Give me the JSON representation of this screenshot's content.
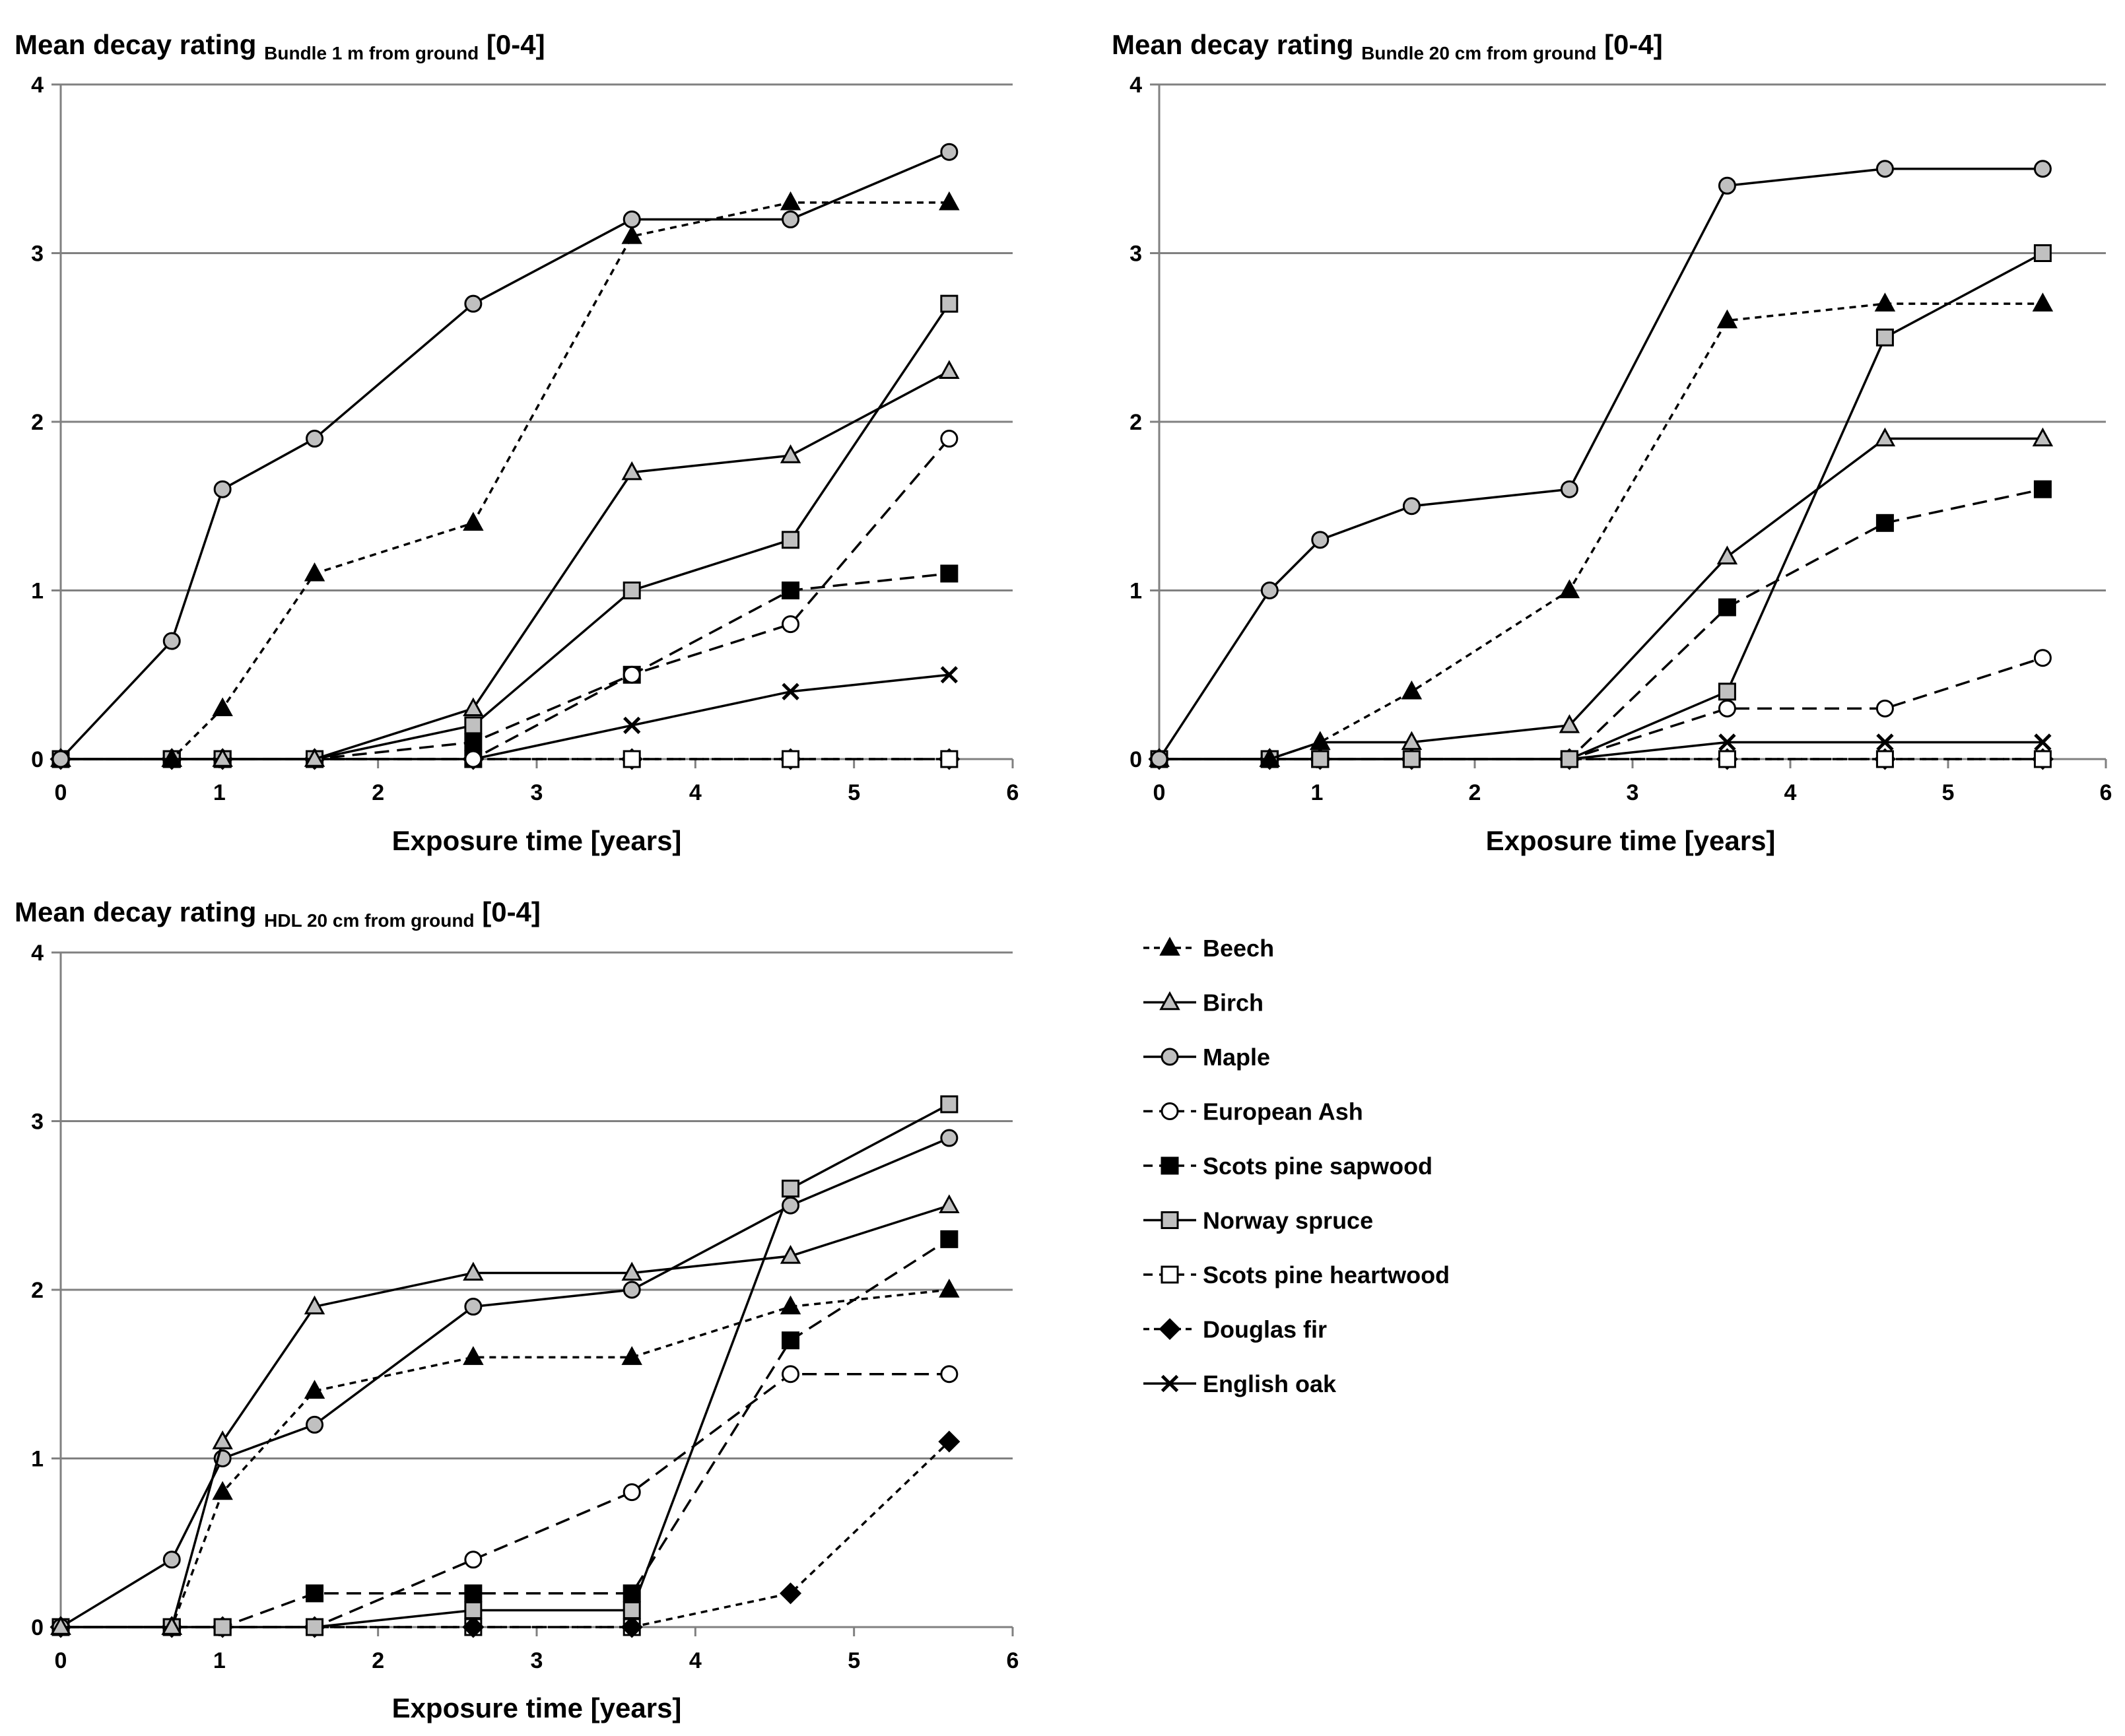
{
  "figure": {
    "legend": [
      {
        "key": "beech",
        "label": "Beech"
      },
      {
        "key": "birch",
        "label": "Birch"
      },
      {
        "key": "maple",
        "label": "Maple"
      },
      {
        "key": "ash",
        "label": "European Ash"
      },
      {
        "key": "pine_sap",
        "label": "Scots pine sapwood"
      },
      {
        "key": "spruce",
        "label": "Norway spruce"
      },
      {
        "key": "pine_heart",
        "label": "Scots pine heartwood"
      },
      {
        "key": "douglas",
        "label": "Douglas fir"
      },
      {
        "key": "oak",
        "label": "English oak"
      }
    ],
    "styles": {
      "beech": {
        "marker": "triangle",
        "fill": "#000000",
        "dash": "short",
        "color": "#000000"
      },
      "birch": {
        "marker": "triangle",
        "fill": "#c0c0c0",
        "dash": "solid",
        "color": "#000000"
      },
      "maple": {
        "marker": "circle",
        "fill": "#c0c0c0",
        "dash": "solid",
        "color": "#000000"
      },
      "ash": {
        "marker": "circle",
        "fill": "#ffffff",
        "dash": "long",
        "color": "#000000"
      },
      "pine_sap": {
        "marker": "square",
        "fill": "#000000",
        "dash": "long",
        "color": "#000000"
      },
      "spruce": {
        "marker": "square",
        "fill": "#c0c0c0",
        "dash": "solid",
        "color": "#000000"
      },
      "pine_heart": {
        "marker": "square",
        "fill": "#ffffff",
        "dash": "long",
        "color": "#000000"
      },
      "douglas": {
        "marker": "diamond",
        "fill": "#000000",
        "dash": "short",
        "color": "#000000"
      },
      "oak": {
        "marker": "x",
        "fill": "none",
        "dash": "solid",
        "color": "#000000"
      }
    },
    "gridline_color": "#808080"
  },
  "chart_data": [
    {
      "type": "line",
      "title_main": "Mean decay rating",
      "title_sub": "Bundle 1 m from ground",
      "title_end": "[0-4]",
      "xlabel": "Exposure time [years]",
      "ylabel": "",
      "xlim": [
        0,
        6
      ],
      "ylim": [
        0,
        4
      ],
      "xticks": [
        0,
        1,
        2,
        3,
        4,
        5,
        6
      ],
      "yticks": [
        0,
        1,
        2,
        3,
        4
      ],
      "series": [
        {
          "key": "douglas",
          "name": "Douglas fir",
          "x": [
            0,
            0.7,
            1.02,
            1.6,
            2.6,
            3.6,
            4.6,
            5.6
          ],
          "values": [
            0,
            0,
            0,
            0,
            0,
            0,
            0,
            0
          ]
        },
        {
          "key": "pine_heart",
          "name": "Scots pine heartwood",
          "x": [
            0,
            0.7,
            1.02,
            1.6,
            2.6,
            3.6,
            4.6,
            5.6
          ],
          "values": [
            0,
            0,
            0,
            0,
            0,
            0,
            0,
            0
          ]
        },
        {
          "key": "oak",
          "name": "English oak",
          "x": [
            0,
            0.7,
            1.02,
            1.6,
            2.6,
            3.6,
            4.6,
            5.6
          ],
          "values": [
            0,
            0,
            0,
            0,
            0,
            0.2,
            0.4,
            0.5
          ]
        },
        {
          "key": "pine_sap",
          "name": "Scots pine sapwood",
          "x": [
            0,
            0.7,
            1.02,
            1.6,
            2.6,
            3.6,
            4.6,
            5.6
          ],
          "values": [
            0,
            0,
            0,
            0,
            0.1,
            0.5,
            1.0,
            1.1
          ]
        },
        {
          "key": "ash",
          "name": "European Ash",
          "x": [
            0,
            0.7,
            1.02,
            1.6,
            2.6,
            3.6,
            4.6,
            5.6
          ],
          "values": [
            0,
            0,
            0,
            0,
            0,
            0.5,
            0.8,
            1.9
          ]
        },
        {
          "key": "spruce",
          "name": "Norway spruce",
          "x": [
            0,
            0.7,
            1.02,
            1.6,
            2.6,
            3.6,
            4.6,
            5.6
          ],
          "values": [
            0,
            0,
            0,
            0,
            0.2,
            1.0,
            1.3,
            2.7
          ]
        },
        {
          "key": "birch",
          "name": "Birch",
          "x": [
            0,
            0.7,
            1.02,
            1.6,
            2.6,
            3.6,
            4.6,
            5.6
          ],
          "values": [
            0,
            0,
            0,
            0,
            0.3,
            1.7,
            1.8,
            2.3
          ]
        },
        {
          "key": "beech",
          "name": "Beech",
          "x": [
            0,
            0.7,
            1.02,
            1.6,
            2.6,
            3.6,
            4.6,
            5.6
          ],
          "values": [
            0,
            0,
            0.3,
            1.1,
            1.4,
            3.1,
            3.3,
            3.3
          ]
        },
        {
          "key": "maple",
          "name": "Maple",
          "x": [
            0,
            0.7,
            1.02,
            1.6,
            2.6,
            3.6,
            4.6,
            5.6
          ],
          "values": [
            0,
            0.7,
            1.6,
            1.9,
            2.7,
            3.2,
            3.2,
            3.6
          ]
        }
      ]
    },
    {
      "type": "line",
      "title_main": "Mean decay rating",
      "title_sub": "Bundle 20 cm from ground",
      "title_end": "[0-4]",
      "xlabel": "Exposure time [years]",
      "ylabel": "",
      "xlim": [
        0,
        6
      ],
      "ylim": [
        0,
        4
      ],
      "xticks": [
        0,
        1,
        2,
        3,
        4,
        5,
        6
      ],
      "yticks": [
        0,
        1,
        2,
        3,
        4
      ],
      "series": [
        {
          "key": "douglas",
          "name": "Douglas fir",
          "x": [
            0,
            0.7,
            1.02,
            1.6,
            2.6,
            3.6,
            4.6,
            5.6
          ],
          "values": [
            0,
            0,
            0,
            0,
            0,
            0,
            0,
            0
          ]
        },
        {
          "key": "pine_heart",
          "name": "Scots pine heartwood",
          "x": [
            0,
            0.7,
            1.02,
            1.6,
            2.6,
            3.6,
            4.6,
            5.6
          ],
          "values": [
            0,
            0,
            0,
            0,
            0,
            0,
            0,
            0
          ]
        },
        {
          "key": "oak",
          "name": "English oak",
          "x": [
            0,
            0.7,
            1.02,
            1.6,
            2.6,
            3.6,
            4.6,
            5.6
          ],
          "values": [
            0,
            0,
            0,
            0,
            0,
            0.1,
            0.1,
            0.1
          ]
        },
        {
          "key": "ash",
          "name": "European Ash",
          "x": [
            0,
            0.7,
            1.02,
            1.6,
            2.6,
            3.6,
            4.6,
            5.6
          ],
          "values": [
            0,
            0,
            0,
            0,
            0,
            0.3,
            0.3,
            0.6
          ]
        },
        {
          "key": "pine_sap",
          "name": "Scots pine sapwood",
          "x": [
            0,
            0.7,
            1.02,
            1.6,
            2.6,
            3.6,
            4.6,
            5.6
          ],
          "values": [
            0,
            0,
            0,
            0,
            0,
            0.9,
            1.4,
            1.6
          ]
        },
        {
          "key": "spruce",
          "name": "Norway spruce",
          "x": [
            0,
            0.7,
            1.02,
            1.6,
            2.6,
            3.6,
            4.6,
            5.6
          ],
          "values": [
            0,
            0,
            0,
            0,
            0,
            0.4,
            2.5,
            3.0
          ]
        },
        {
          "key": "birch",
          "name": "Birch",
          "x": [
            0,
            0.7,
            1.02,
            1.6,
            2.6,
            3.6,
            4.6,
            5.6
          ],
          "values": [
            0,
            0,
            0.1,
            0.1,
            0.2,
            1.2,
            1.9,
            1.9
          ]
        },
        {
          "key": "beech",
          "name": "Beech",
          "x": [
            0,
            0.7,
            1.02,
            1.6,
            2.6,
            3.6,
            4.6,
            5.6
          ],
          "values": [
            0,
            0,
            0.1,
            0.4,
            1.0,
            2.6,
            2.7,
            2.7
          ]
        },
        {
          "key": "maple",
          "name": "Maple",
          "x": [
            0,
            0.7,
            1.02,
            1.6,
            2.6,
            3.6,
            4.6,
            5.6
          ],
          "values": [
            0,
            1.0,
            1.3,
            1.5,
            1.6,
            3.4,
            3.5,
            3.5
          ]
        }
      ]
    },
    {
      "type": "line",
      "title_main": "Mean decay rating",
      "title_sub": "HDL 20 cm from ground",
      "title_end": "[0-4]",
      "xlabel": "Exposure time [years]",
      "ylabel": "",
      "xlim": [
        0,
        6
      ],
      "ylim": [
        0,
        4
      ],
      "xticks": [
        0,
        1,
        2,
        3,
        4,
        5,
        6
      ],
      "yticks": [
        0,
        1,
        2,
        3,
        4
      ],
      "series": [
        {
          "key": "pine_heart",
          "name": "Scots pine heartwood",
          "x": [
            0,
            0.7,
            1.02,
            1.6,
            2.6,
            3.6
          ],
          "values": [
            0,
            0,
            0,
            0,
            0,
            0
          ]
        },
        {
          "key": "douglas",
          "name": "Douglas fir",
          "x": [
            0,
            0.7,
            1.02,
            1.6,
            2.6,
            3.6,
            4.6,
            5.6
          ],
          "values": [
            0,
            0,
            0,
            0,
            0,
            0,
            0.2,
            1.1
          ]
        },
        {
          "key": "ash",
          "name": "European Ash",
          "x": [
            0,
            0.7,
            1.02,
            1.6,
            2.6,
            3.6,
            4.6,
            5.6
          ],
          "values": [
            0,
            0,
            0,
            0,
            0.4,
            0.8,
            1.5,
            1.5
          ]
        },
        {
          "key": "pine_sap",
          "name": "Scots pine sapwood",
          "x": [
            0,
            0.7,
            1.02,
            1.6,
            2.6,
            3.6,
            4.6,
            5.6
          ],
          "values": [
            0,
            0,
            0,
            0.2,
            0.2,
            0.2,
            1.7,
            2.3
          ]
        },
        {
          "key": "spruce",
          "name": "Norway spruce",
          "x": [
            0,
            0.7,
            1.02,
            1.6,
            2.6,
            3.6,
            4.6,
            5.6
          ],
          "values": [
            0,
            0,
            0,
            0,
            0.1,
            0.1,
            2.6,
            3.1
          ]
        },
        {
          "key": "beech",
          "name": "Beech",
          "x": [
            0,
            0.7,
            1.02,
            1.6,
            2.6,
            3.6,
            4.6,
            5.6
          ],
          "values": [
            0,
            0,
            0.8,
            1.4,
            1.6,
            1.6,
            1.9,
            2.0
          ]
        },
        {
          "key": "maple",
          "name": "Maple",
          "x": [
            0,
            0.7,
            1.02,
            1.6,
            2.6,
            3.6,
            4.6,
            5.6
          ],
          "values": [
            0,
            0.4,
            1.0,
            1.2,
            1.9,
            2.0,
            2.5,
            2.9
          ]
        },
        {
          "key": "birch",
          "name": "Birch",
          "x": [
            0,
            0.7,
            1.02,
            1.6,
            2.6,
            3.6,
            4.6,
            5.6
          ],
          "values": [
            0,
            0,
            1.1,
            1.9,
            2.1,
            2.1,
            2.2,
            2.5
          ]
        }
      ]
    }
  ]
}
